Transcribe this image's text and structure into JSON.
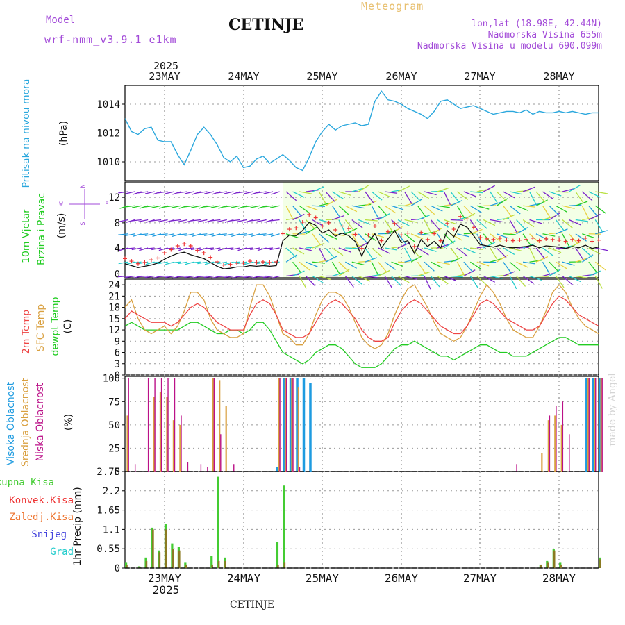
{
  "header": {
    "model_label": "Model",
    "model_name": "wrf-nmm_v3.9.1 e1km",
    "station": "CETINJE",
    "meteogram": "Meteogram",
    "lonlat": "lon,lat (18.98E, 42.44N)",
    "altitude": "Nadmorska Visina 655m",
    "model_altitude": "Nadmorska Visina u modelu 690.099m"
  },
  "footer": {
    "station": "CETINJE",
    "credit": "made by Angel"
  },
  "dates": {
    "year": "2025",
    "days": [
      "23MAY",
      "24MAY",
      "25MAY",
      "26MAY",
      "27MAY",
      "28MAY"
    ]
  },
  "colors": {
    "pressure": "#2aa7dd",
    "temp2m": "#ee4444",
    "sfc": "#d9a040",
    "dewpt": "#22cc22",
    "high_cloud": "#1e9be0",
    "mid_cloud": "#d9a040",
    "low_cloud": "#bb1188",
    "precip_total": "#44cc33",
    "precip_conv": "#ee3333",
    "precip_frozen": "#ee7733",
    "snow": "#4444dd",
    "hail": "#22cccc",
    "wind_speed": "#111111",
    "gust": "#ee3333"
  },
  "chart_data": [
    {
      "type": "line",
      "title": "",
      "ylabel": "Pritisak na nivou mora",
      "unit": "(hPa)",
      "yticks": [
        "1010",
        "1012",
        "1014"
      ],
      "ylim": [
        1008.7,
        1015.3
      ],
      "xlim": [
        0,
        144
      ],
      "x_start": "2025-05-22 12h",
      "x_step_hours": 2,
      "series": [
        {
          "name": "Pritisak na nivou mora",
          "values": [
            1013.0,
            1012.1,
            1011.9,
            1012.3,
            1012.4,
            1011.5,
            1011.4,
            1011.4,
            1010.5,
            1009.8,
            1010.8,
            1011.9,
            1012.4,
            1011.9,
            1011.2,
            1010.3,
            1010.0,
            1010.4,
            1009.6,
            1009.7,
            1010.2,
            1010.4,
            1009.9,
            1010.2,
            1010.5,
            1010.1,
            1009.6,
            1009.4,
            1010.3,
            1011.4,
            1012.1,
            1012.6,
            1012.2,
            1012.5,
            1012.6,
            1012.7,
            1012.5,
            1012.6,
            1014.2,
            1014.9,
            1014.3,
            1014.2,
            1014.0,
            1013.7,
            1013.5,
            1013.3,
            1013.0,
            1013.5,
            1014.2,
            1014.3,
            1014.0,
            1013.7,
            1013.8,
            1013.9,
            1013.7,
            1013.5,
            1013.3,
            1013.4,
            1013.5,
            1013.5,
            1013.4,
            1013.6,
            1013.3,
            1013.5,
            1013.4,
            1013.4,
            1013.5,
            1013.4,
            1013.5,
            1013.4,
            1013.3,
            1013.4,
            1013.4
          ]
        }
      ]
    },
    {
      "type": "line",
      "title": "",
      "ylabel": "10m Vjetar Brzina i Pravac",
      "unit": "(m/s)",
      "compass": [
        "N",
        "E",
        "S",
        "W"
      ],
      "yticks": [
        "0",
        "4",
        "8",
        "12"
      ],
      "ylim": [
        -0.6,
        14.4
      ],
      "xlim": [
        0,
        144
      ],
      "x_start": "2025-05-22 12h",
      "x_step_hours": 2,
      "series": [
        {
          "name": "wind speed",
          "values": [
            1.6,
            1.3,
            1.0,
            1.2,
            1.4,
            1.7,
            2.3,
            2.8,
            3.2,
            3.4,
            3.0,
            2.7,
            2.4,
            1.8,
            1.2,
            0.8,
            0.9,
            1.1,
            1.1,
            1.3,
            1.2,
            1.3,
            1.2,
            1.3,
            5.2,
            6.1,
            6.0,
            6.8,
            8.1,
            7.6,
            6.4,
            6.9,
            5.9,
            6.4,
            6.0,
            5.1,
            2.8,
            5.0,
            6.3,
            4.1,
            5.5,
            6.8,
            4.9,
            5.2,
            3.2,
            5.4,
            4.3,
            5.1,
            4.1,
            6.8,
            5.8,
            7.8,
            7.3,
            6.0,
            4.6,
            4.4,
            4.2,
            4.5,
            4.2,
            4.1,
            4.2,
            4.3,
            4.5,
            4.1,
            4.4,
            4.3,
            4.2,
            4.0,
            4.3,
            4.1,
            4.5,
            4.0,
            4.2
          ]
        },
        {
          "name": "gust",
          "values": [
            2.4,
            2.0,
            1.6,
            1.8,
            2.2,
            2.5,
            3.3,
            3.8,
            4.4,
            4.7,
            4.4,
            3.7,
            3.3,
            2.6,
            1.9,
            1.4,
            1.5,
            1.7,
            1.7,
            2.0,
            1.8,
            1.9,
            1.8,
            1.9,
            6.3,
            7.0,
            7.2,
            8.1,
            9.3,
            8.8,
            7.5,
            8.0,
            6.9,
            7.5,
            7.1,
            6.2,
            4.0,
            6.1,
            7.5,
            5.2,
            6.6,
            7.9,
            6.1,
            6.4,
            4.3,
            6.5,
            5.4,
            6.3,
            5.2,
            7.9,
            7.0,
            9.0,
            8.6,
            7.3,
            5.7,
            5.5,
            5.4,
            5.6,
            5.3,
            5.2,
            5.3,
            5.4,
            5.6,
            5.2,
            5.5,
            5.4,
            5.3,
            5.1,
            5.4,
            5.2,
            5.6,
            5.1,
            5.3
          ]
        }
      ]
    },
    {
      "type": "line",
      "title": "",
      "ylabel": "2m Temp / SFC Temp / dewpt Temp",
      "series_labels": [
        "2m Temp",
        "SFC Temp",
        "dewpt Temp"
      ],
      "unit": "(C)",
      "yticks": [
        "0",
        "3",
        "6",
        "9",
        "12",
        "15",
        "18",
        "21",
        "24"
      ],
      "ylim": [
        0,
        25.5
      ],
      "xlim": [
        0,
        144
      ],
      "x_start": "2025-05-22 12h",
      "x_step_hours": 2,
      "series": [
        {
          "name": "2m Temp",
          "values": [
            15,
            17,
            16,
            15,
            14,
            14,
            14,
            13,
            14,
            16,
            18,
            19,
            18,
            16,
            14,
            13,
            12,
            12,
            12,
            16,
            19,
            20,
            19,
            16,
            12,
            11,
            10,
            10,
            11,
            14,
            17,
            19,
            20,
            19,
            17,
            15,
            12,
            10,
            9,
            9,
            10,
            14,
            17,
            19,
            20,
            19,
            17,
            15,
            13,
            12,
            11,
            11,
            13,
            16,
            19,
            20,
            19,
            17,
            15,
            14,
            13,
            12,
            12,
            13,
            16,
            19,
            21,
            20,
            18,
            16,
            15,
            14,
            13
          ]
        },
        {
          "name": "SFC Temp",
          "values": [
            18,
            20,
            15,
            12,
            11,
            12,
            13,
            11,
            13,
            17,
            22,
            22,
            20,
            15,
            12,
            11,
            10,
            10,
            11,
            18,
            24,
            24,
            21,
            16,
            11,
            10,
            8,
            8,
            11,
            16,
            20,
            22,
            22,
            21,
            18,
            14,
            10,
            8,
            7,
            8,
            11,
            16,
            20,
            23,
            24,
            21,
            18,
            14,
            11,
            10,
            9,
            10,
            13,
            17,
            21,
            24,
            22,
            19,
            15,
            12,
            11,
            10,
            10,
            13,
            17,
            22,
            24,
            22,
            18,
            15,
            13,
            12,
            11
          ]
        },
        {
          "name": "dewpt Temp",
          "values": [
            13,
            14,
            13,
            12,
            12,
            12,
            12,
            12,
            12,
            13,
            14,
            14,
            13,
            12,
            11,
            11,
            12,
            12,
            11,
            12,
            14,
            14,
            12,
            9,
            6,
            5,
            4,
            3,
            4,
            6,
            7,
            8,
            8,
            7,
            5,
            3,
            2,
            2,
            2,
            3,
            5,
            7,
            8,
            8,
            9,
            8,
            7,
            6,
            5,
            5,
            4,
            5,
            6,
            7,
            8,
            8,
            7,
            6,
            6,
            5,
            5,
            5,
            6,
            7,
            8,
            9,
            10,
            10,
            9,
            8,
            8,
            8,
            8
          ]
        }
      ]
    },
    {
      "type": "bar",
      "title": "",
      "ylabel": "Visoka Oblacnost / Srednja Oblacnost / Niska Oblacnost",
      "series_labels": [
        "Visoka Oblacnost",
        "Srednja Oblacnost",
        "Niska Oblacnost"
      ],
      "unit": "(%)",
      "yticks": [
        "0",
        "25",
        "50",
        "75",
        "100"
      ],
      "ylim": [
        0,
        102
      ],
      "xlim": [
        0,
        144
      ],
      "x_start": "2025-05-22 12h",
      "x_step_hours": 2,
      "series": [
        {
          "name": "Visoka Oblacnost",
          "values": [
            0,
            0,
            0,
            0,
            0,
            0,
            0,
            0,
            0,
            0,
            0,
            0,
            0,
            0,
            0,
            0,
            0,
            0,
            0,
            0,
            0,
            0,
            0,
            5,
            100,
            100,
            100,
            100,
            95,
            0,
            0,
            0,
            0,
            0,
            0,
            0,
            0,
            0,
            0,
            0,
            0,
            0,
            0,
            0,
            0,
            0,
            0,
            0,
            0,
            0,
            0,
            0,
            0,
            0,
            0,
            0,
            0,
            0,
            0,
            0,
            0,
            0,
            0,
            0,
            0,
            0,
            0,
            0,
            0,
            0,
            100,
            100,
            100
          ]
        },
        {
          "name": "Srednja Oblacnost",
          "values": [
            60,
            0,
            0,
            0,
            80,
            85,
            80,
            55,
            50,
            0,
            0,
            0,
            0,
            100,
            98,
            70,
            0,
            0,
            0,
            0,
            0,
            0,
            0,
            100,
            100,
            100,
            90,
            0,
            0,
            0,
            0,
            0,
            0,
            0,
            0,
            0,
            0,
            0,
            0,
            0,
            0,
            0,
            0,
            0,
            0,
            0,
            0,
            0,
            0,
            0,
            0,
            0,
            0,
            0,
            0,
            0,
            0,
            0,
            0,
            0,
            0,
            0,
            0,
            20,
            55,
            60,
            50,
            0,
            0,
            0,
            100,
            100,
            100
          ]
        },
        {
          "name": "Niska Oblacnost",
          "values": [
            100,
            8,
            0,
            100,
            100,
            100,
            100,
            100,
            60,
            10,
            0,
            8,
            5,
            100,
            40,
            0,
            8,
            0,
            0,
            0,
            0,
            0,
            0,
            100,
            100,
            100,
            5,
            0,
            0,
            0,
            0,
            0,
            0,
            0,
            0,
            0,
            0,
            0,
            0,
            0,
            0,
            0,
            0,
            0,
            0,
            0,
            0,
            0,
            0,
            0,
            0,
            0,
            0,
            0,
            0,
            0,
            0,
            0,
            0,
            8,
            0,
            0,
            0,
            0,
            60,
            70,
            75,
            40,
            0,
            0,
            100,
            100,
            100
          ]
        }
      ]
    },
    {
      "type": "bar",
      "title": "",
      "ylabel": "1hr Precip",
      "series_labels": [
        "Ukupna Kisa",
        "Konvek.Kisa",
        "Zaledj.Kisa",
        "Snijeg",
        "Grad"
      ],
      "unit": "(mm)",
      "yticks": [
        "0",
        "0.55",
        "1.1",
        "1.65",
        "2.2",
        "2.75"
      ],
      "ylim": [
        0,
        2.75
      ],
      "xlim": [
        0,
        144
      ],
      "x_start": "2025-05-22 12h",
      "x_step_hours": 2,
      "series": [
        {
          "name": "Ukupna Kisa",
          "values": [
            0.15,
            0.0,
            0.05,
            0.3,
            1.15,
            0.5,
            1.25,
            0.7,
            0.6,
            0.15,
            0.0,
            0.0,
            0.0,
            0.35,
            2.6,
            0.3,
            0.0,
            0.0,
            0.0,
            0.0,
            0.0,
            0.0,
            0.0,
            0.75,
            2.35,
            0.0,
            0.0,
            0.0,
            0.0,
            0.0,
            0.0,
            0.0,
            0.0,
            0.0,
            0.0,
            0.0,
            0.0,
            0.0,
            0.0,
            0.0,
            0.0,
            0.0,
            0.0,
            0.0,
            0.0,
            0.0,
            0.0,
            0.0,
            0.0,
            0.0,
            0.0,
            0.0,
            0.0,
            0.0,
            0.0,
            0.0,
            0.0,
            0.0,
            0.0,
            0.0,
            0.0,
            0.0,
            0.0,
            0.1,
            0.2,
            0.55,
            0.15,
            0.0,
            0.0,
            0.0,
            0.0,
            0.0,
            0.3
          ]
        },
        {
          "name": "Konvek.Kisa",
          "values": [
            0.1,
            0.0,
            0.03,
            0.2,
            1.1,
            0.45,
            1.1,
            0.55,
            0.5,
            0.1,
            0.0,
            0.0,
            0.0,
            0.1,
            0.2,
            0.2,
            0.0,
            0.0,
            0.0,
            0.0,
            0.0,
            0.0,
            0.0,
            0.1,
            0.15,
            0.0,
            0.0,
            0.0,
            0.0,
            0.0,
            0.0,
            0.0,
            0.0,
            0.0,
            0.0,
            0.0,
            0.0,
            0.0,
            0.0,
            0.0,
            0.0,
            0.0,
            0.0,
            0.0,
            0.0,
            0.0,
            0.0,
            0.0,
            0.0,
            0.0,
            0.0,
            0.0,
            0.0,
            0.0,
            0.0,
            0.0,
            0.0,
            0.0,
            0.0,
            0.0,
            0.0,
            0.0,
            0.0,
            0.08,
            0.15,
            0.5,
            0.1,
            0.0,
            0.0,
            0.0,
            0.0,
            0.0,
            0.25
          ]
        }
      ]
    }
  ]
}
